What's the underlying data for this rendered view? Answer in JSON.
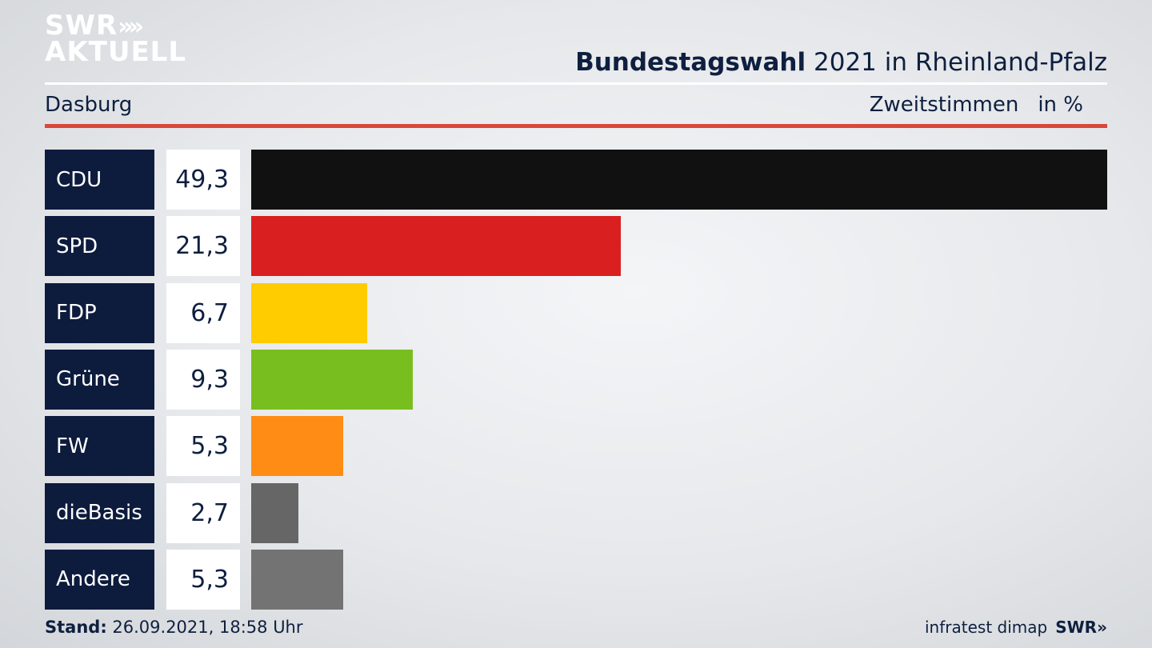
{
  "logo": {
    "line1": "SWR",
    "chevrons": "»",
    "line2": "AKTUELL"
  },
  "header": {
    "title_bold": "Bundestagswahl",
    "title_rest": "2021 in Rheinland-Pfalz",
    "location": "Dasburg",
    "measure": "Zweitstimmen",
    "unit": "in %"
  },
  "chart_data": {
    "type": "bar",
    "orientation": "horizontal",
    "categories": [
      "CDU",
      "SPD",
      "FDP",
      "Grüne",
      "FW",
      "dieBasis",
      "Andere"
    ],
    "values": [
      49.3,
      21.3,
      6.7,
      9.3,
      5.3,
      2.7,
      5.3
    ],
    "value_labels": [
      "49,3",
      "21,3",
      "6,7",
      "9,3",
      "5,3",
      "2,7",
      "5,3"
    ],
    "colors": [
      "#111111",
      "#d91f20",
      "#ffcc00",
      "#78be1e",
      "#ff8c14",
      "#666666",
      "#737373"
    ],
    "xlim": [
      0,
      49.3
    ]
  },
  "footer": {
    "stand_label": "Stand:",
    "stand_value": "26.09.2021, 18:58 Uhr",
    "source": "infratest dimap",
    "brand": "SWR»"
  }
}
